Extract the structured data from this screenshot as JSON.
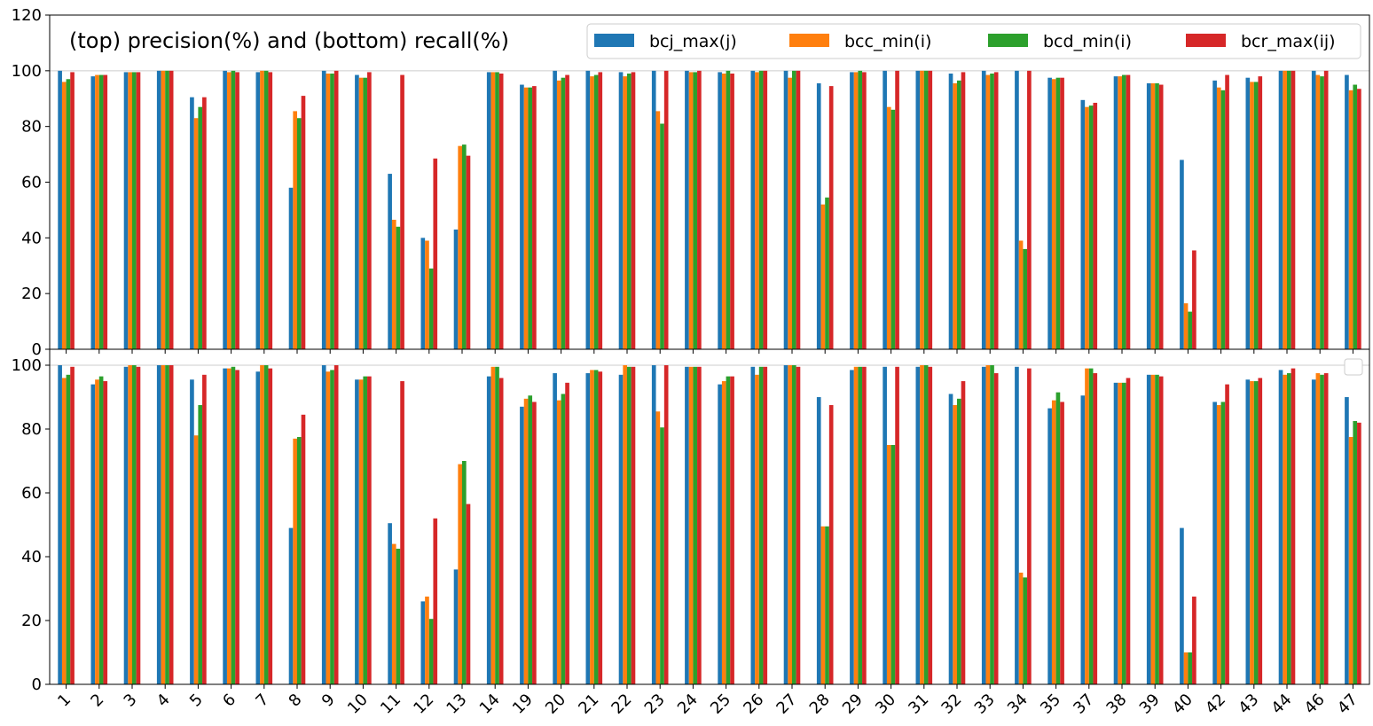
{
  "chart_data": [
    {
      "type": "bar",
      "title": "(top) precision(%) and (bottom) recall(%)",
      "ylim": [
        0,
        120
      ],
      "yticks": [
        0,
        20,
        40,
        60,
        80,
        100,
        120
      ],
      "categories": [
        "1",
        "2",
        "3",
        "4",
        "5",
        "6",
        "7",
        "8",
        "9",
        "10",
        "11",
        "12",
        "13",
        "14",
        "19",
        "20",
        "21",
        "22",
        "23",
        "24",
        "25",
        "26",
        "27",
        "28",
        "29",
        "30",
        "31",
        "32",
        "33",
        "34",
        "35",
        "37",
        "38",
        "39",
        "40",
        "42",
        "43",
        "44",
        "46",
        "47"
      ],
      "legend_position": "top-right",
      "grid": "horizontal line at 100",
      "series": [
        {
          "name": "bcj_max(j)",
          "color": "#1f77b4",
          "values": [
            100,
            98,
            99.5,
            100,
            90.5,
            100,
            99.5,
            58,
            100,
            98.5,
            63,
            40,
            43,
            99.5,
            95,
            100,
            100,
            99.5,
            100,
            100,
            99.5,
            100,
            100,
            95.5,
            99.5,
            100,
            100,
            99,
            100,
            100,
            97.5,
            89.5,
            98,
            95.5,
            68,
            96.5,
            97.5,
            100,
            100,
            98.5
          ]
        },
        {
          "name": "bcc_min(i)",
          "color": "#ff7f0e",
          "values": [
            96,
            98.5,
            99.5,
            100,
            83,
            99.5,
            100,
            85.5,
            99,
            97.5,
            46.5,
            39,
            73,
            99.5,
            94,
            96.5,
            98,
            98,
            85.5,
            99.5,
            99,
            99.5,
            97.5,
            52,
            99.5,
            87,
            100,
            95.5,
            98.5,
            39,
            97,
            87,
            98,
            95.5,
            16.5,
            94,
            96,
            100,
            98.5,
            93
          ]
        },
        {
          "name": "bcd_min(i)",
          "color": "#2ca02c",
          "values": [
            97,
            98.5,
            99.5,
            100,
            87,
            100,
            100,
            83,
            99,
            97.5,
            44,
            29,
            73.5,
            99.5,
            94,
            97.5,
            98.5,
            99,
            81,
            99.5,
            100,
            100,
            100,
            54.5,
            100,
            86,
            100,
            96.5,
            99,
            36,
            97.5,
            87.5,
            98.5,
            95.5,
            13.5,
            93,
            96,
            100,
            98,
            95
          ]
        },
        {
          "name": "bcr_max(ij)",
          "color": "#d62728",
          "values": [
            99.5,
            98.5,
            99.5,
            100,
            90.5,
            99.5,
            99.5,
            91,
            100,
            99.5,
            98.5,
            68.5,
            69.5,
            99,
            94.5,
            98.5,
            99.5,
            99.5,
            100,
            100,
            99,
            100,
            100,
            94.5,
            99.5,
            100,
            100,
            99.5,
            99.5,
            100,
            97.5,
            88.5,
            98.5,
            95,
            35.5,
            98.5,
            98,
            100,
            100,
            93.5
          ]
        }
      ]
    },
    {
      "type": "bar",
      "ylim": [
        0,
        105
      ],
      "yticks": [
        0,
        20,
        40,
        60,
        80,
        100
      ],
      "categories": [
        "1",
        "2",
        "3",
        "4",
        "5",
        "6",
        "7",
        "8",
        "9",
        "10",
        "11",
        "12",
        "13",
        "14",
        "19",
        "20",
        "21",
        "22",
        "23",
        "24",
        "25",
        "26",
        "27",
        "28",
        "29",
        "30",
        "31",
        "32",
        "33",
        "34",
        "35",
        "37",
        "38",
        "39",
        "40",
        "42",
        "43",
        "44",
        "46",
        "47"
      ],
      "legend_position": "top-right (empty)",
      "grid": "horizontal line at 100",
      "series": [
        {
          "color": "#1f77b4",
          "values": [
            100,
            94,
            99.5,
            100,
            95.5,
            99,
            98,
            49,
            100,
            95.5,
            50.5,
            26,
            36,
            96.5,
            87,
            97.5,
            97.5,
            97,
            100,
            99.5,
            94,
            99.5,
            100,
            90,
            98.5,
            99.5,
            99.5,
            91,
            99.5,
            99.5,
            86.5,
            90.5,
            94.5,
            97,
            49,
            88.5,
            95.5,
            98.5,
            95.5,
            90
          ]
        },
        {
          "color": "#ff7f0e",
          "values": [
            96,
            95.5,
            100,
            100,
            78,
            99,
            100,
            77,
            98,
            95.5,
            44,
            27.5,
            69,
            99.5,
            89.5,
            89,
            98.5,
            100,
            85.5,
            99.5,
            95,
            97,
            100,
            49.5,
            99.5,
            75,
            100,
            87.5,
            100,
            35,
            89,
            99,
            94.5,
            97,
            10,
            87.5,
            95,
            97,
            97.5,
            77.5
          ]
        },
        {
          "color": "#2ca02c",
          "values": [
            97,
            96.5,
            100,
            100,
            87.5,
            99.5,
            100,
            77.5,
            98.5,
            96.5,
            42.5,
            20.5,
            70,
            99.5,
            90.5,
            91,
            98.5,
            99.5,
            80.5,
            99.5,
            96.5,
            99.5,
            100,
            49.5,
            99.5,
            75,
            100,
            89.5,
            100,
            33.5,
            91.5,
            99,
            94.5,
            97,
            10,
            88.5,
            95,
            97.5,
            97,
            82.5
          ]
        },
        {
          "color": "#d62728",
          "values": [
            99.5,
            95,
            99.5,
            100,
            97,
            98.5,
            99,
            84.5,
            100,
            96.5,
            95,
            52,
            56.5,
            96,
            88.5,
            94.5,
            98,
            99.5,
            100,
            99.5,
            96.5,
            99.5,
            99.5,
            87.5,
            99.5,
            99.5,
            99.5,
            95,
            97.5,
            99,
            88.5,
            97.5,
            96,
            96.5,
            27.5,
            94,
            96,
            99,
            97.5,
            82
          ]
        }
      ]
    }
  ]
}
